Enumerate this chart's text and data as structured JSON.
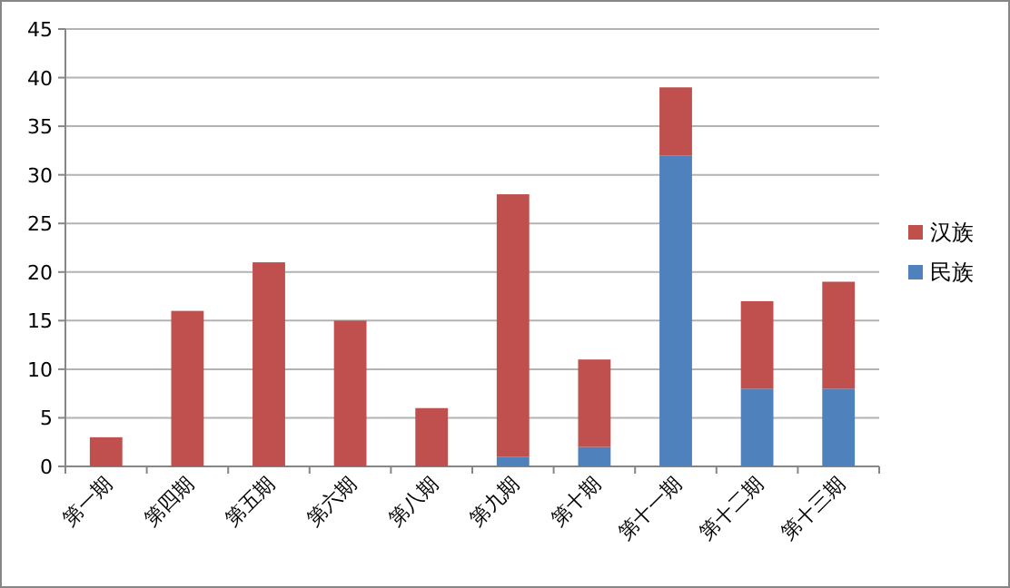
{
  "chart_data": {
    "type": "bar",
    "stacked": true,
    "categories": [
      "第一期",
      "第四期",
      "第五期",
      "第六期",
      "第八期",
      "第九期",
      "第十期",
      "第十一期",
      "第十二期",
      "第十三期"
    ],
    "series": [
      {
        "name": "民族",
        "color": "#4f81bd",
        "values": [
          0,
          0,
          0,
          0,
          0,
          1,
          2,
          32,
          8,
          8
        ]
      },
      {
        "name": "汉族",
        "color": "#c0504d",
        "values": [
          3,
          16,
          21,
          15,
          6,
          27,
          9,
          7,
          9,
          11
        ]
      }
    ],
    "ylim": [
      0,
      45
    ],
    "yticks": [
      0,
      5,
      10,
      15,
      20,
      25,
      30,
      35,
      40,
      45
    ],
    "grid": "y",
    "legend": "right"
  }
}
